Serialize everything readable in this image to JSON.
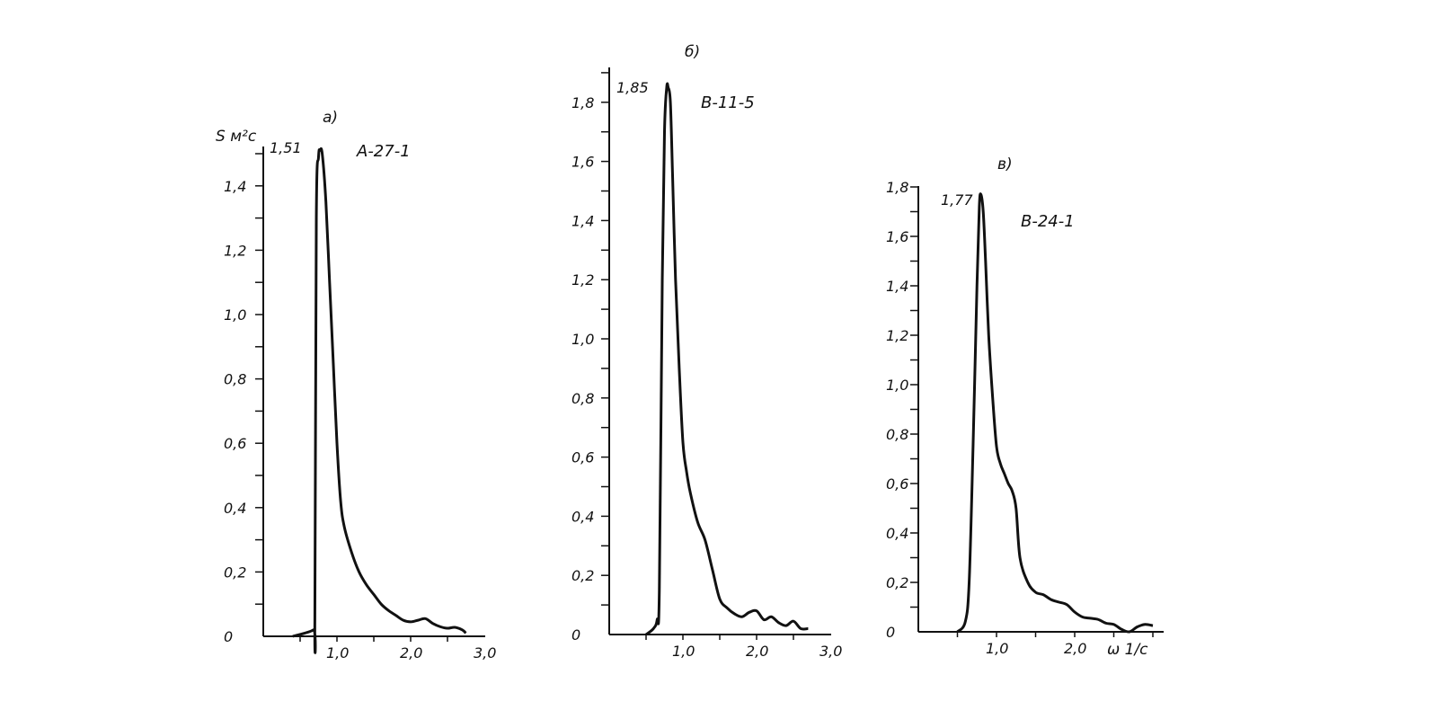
{
  "chart_data": [
    {
      "panel": "a)",
      "type": "line",
      "series": [
        {
          "name": "А-27-1",
          "x": [
            0.4,
            0.68,
            0.7,
            0.72,
            0.75,
            0.77,
            0.8,
            0.85,
            0.9,
            0.95,
            1.0,
            1.05,
            1.1,
            1.2,
            1.3,
            1.4,
            1.5,
            1.6,
            1.7,
            1.8,
            1.9,
            2.0,
            2.1,
            2.2,
            2.3,
            2.4,
            2.5,
            2.6,
            2.7,
            2.75
          ],
          "values": [
            0.0,
            0.02,
            0.05,
            1.3,
            1.49,
            1.51,
            1.5,
            1.35,
            1.1,
            0.85,
            0.6,
            0.42,
            0.34,
            0.26,
            0.2,
            0.16,
            0.13,
            0.1,
            0.08,
            0.065,
            0.05,
            0.045,
            0.05,
            0.055,
            0.04,
            0.03,
            0.025,
            0.028,
            0.02,
            0.01
          ]
        }
      ],
      "peak_label": "1,51",
      "ylabel": "S м²с",
      "y_ticks": [
        "0",
        "0,2",
        "0,4",
        "0,6",
        "0,8",
        "1,0",
        "1,2",
        "1,4"
      ],
      "x_ticks": [
        "1,0",
        "2,0",
        "3,0"
      ],
      "xlim": [
        0,
        3.1
      ],
      "ylim": [
        0,
        1.51
      ]
    },
    {
      "panel": "б)",
      "type": "line",
      "series": [
        {
          "name": "В-11-5",
          "x": [
            0.5,
            0.6,
            0.65,
            0.68,
            0.72,
            0.75,
            0.78,
            0.8,
            0.83,
            0.86,
            0.9,
            0.95,
            1.0,
            1.05,
            1.1,
            1.2,
            1.3,
            1.4,
            1.5,
            1.6,
            1.7,
            1.8,
            1.9,
            2.0,
            2.1,
            2.2,
            2.3,
            2.4,
            2.5,
            2.6,
            2.7
          ],
          "values": [
            0.0,
            0.02,
            0.05,
            0.15,
            1.2,
            1.7,
            1.85,
            1.85,
            1.8,
            1.55,
            1.2,
            0.9,
            0.65,
            0.55,
            0.48,
            0.38,
            0.32,
            0.22,
            0.12,
            0.09,
            0.07,
            0.06,
            0.075,
            0.08,
            0.05,
            0.06,
            0.04,
            0.03,
            0.045,
            0.02,
            0.02
          ]
        }
      ],
      "peak_label": "1,85",
      "y_ticks": [
        "0",
        "0,2",
        "0,4",
        "0,6",
        "0,8",
        "1,0",
        "1,2",
        "1,4",
        "1,6",
        "1,8"
      ],
      "x_ticks": [
        "1,0",
        "2,0",
        "3,0"
      ],
      "xlim": [
        0,
        3.1
      ],
      "ylim": [
        0,
        1.9
      ]
    },
    {
      "panel": "в)",
      "type": "line",
      "series": [
        {
          "name": "В-24-1",
          "x": [
            0.5,
            0.6,
            0.65,
            0.7,
            0.75,
            0.78,
            0.8,
            0.83,
            0.86,
            0.9,
            0.95,
            1.0,
            1.05,
            1.1,
            1.15,
            1.2,
            1.25,
            1.3,
            1.4,
            1.5,
            1.6,
            1.7,
            1.8,
            1.9,
            2.0,
            2.1,
            2.2,
            2.3,
            2.4,
            2.5,
            2.6,
            2.7,
            2.8,
            2.9,
            3.0
          ],
          "values": [
            0.0,
            0.04,
            0.2,
            0.75,
            1.4,
            1.72,
            1.77,
            1.7,
            1.5,
            1.2,
            0.95,
            0.75,
            0.68,
            0.64,
            0.6,
            0.57,
            0.5,
            0.3,
            0.2,
            0.16,
            0.15,
            0.13,
            0.12,
            0.11,
            0.08,
            0.06,
            0.055,
            0.05,
            0.035,
            0.03,
            0.01,
            0.0,
            0.02,
            0.03,
            0.025
          ]
        }
      ],
      "peak_label": "1,77",
      "xlabel": "ω  1/с",
      "y_ticks": [
        "0",
        "0,2",
        "0,4",
        "0,6",
        "0,8",
        "1,0",
        "1,2",
        "1,4",
        "1,6",
        "1,8"
      ],
      "x_ticks": [
        "1,0",
        "2,0"
      ],
      "xlim": [
        0,
        3.0
      ],
      "ylim": [
        0,
        1.8
      ]
    }
  ]
}
